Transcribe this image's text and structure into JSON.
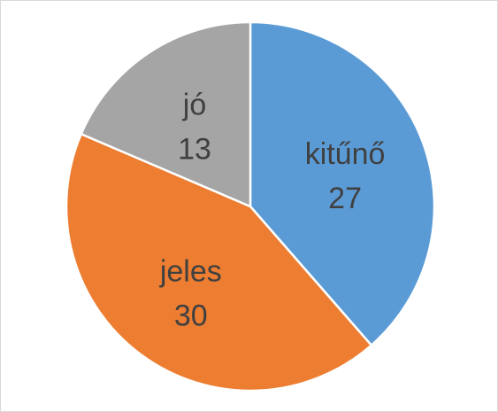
{
  "chart_data": {
    "type": "pie",
    "title": "",
    "legend": "none",
    "slices": [
      {
        "label": "kitűnő",
        "value": 27,
        "color": "#5b9bd5"
      },
      {
        "label": "jeles",
        "value": 30,
        "color": "#ed7d31"
      },
      {
        "label": "jó",
        "value": 13,
        "color": "#a5a5a5"
      }
    ]
  }
}
